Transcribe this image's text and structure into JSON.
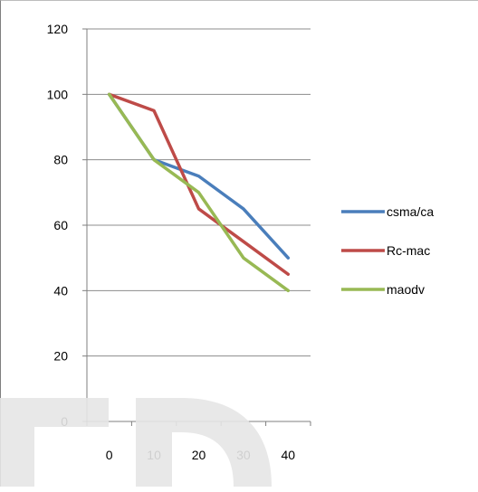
{
  "chart_data": {
    "type": "line",
    "categories": [
      "0",
      "10",
      "20",
      "30",
      "40"
    ],
    "series": [
      {
        "name": "csma/ca",
        "color": "#4a7ebb",
        "values": [
          100,
          80,
          75,
          65,
          50
        ]
      },
      {
        "name": "Rc-mac",
        "color": "#be4b48",
        "values": [
          100,
          95,
          65,
          55,
          45
        ]
      },
      {
        "name": "maodv",
        "color": "#98b954",
        "values": [
          100,
          80,
          70,
          50,
          40
        ]
      }
    ],
    "ylim": [
      0,
      120
    ],
    "yticks": [
      0,
      20,
      40,
      60,
      80,
      100,
      120
    ],
    "grid": true,
    "legend": "right"
  }
}
